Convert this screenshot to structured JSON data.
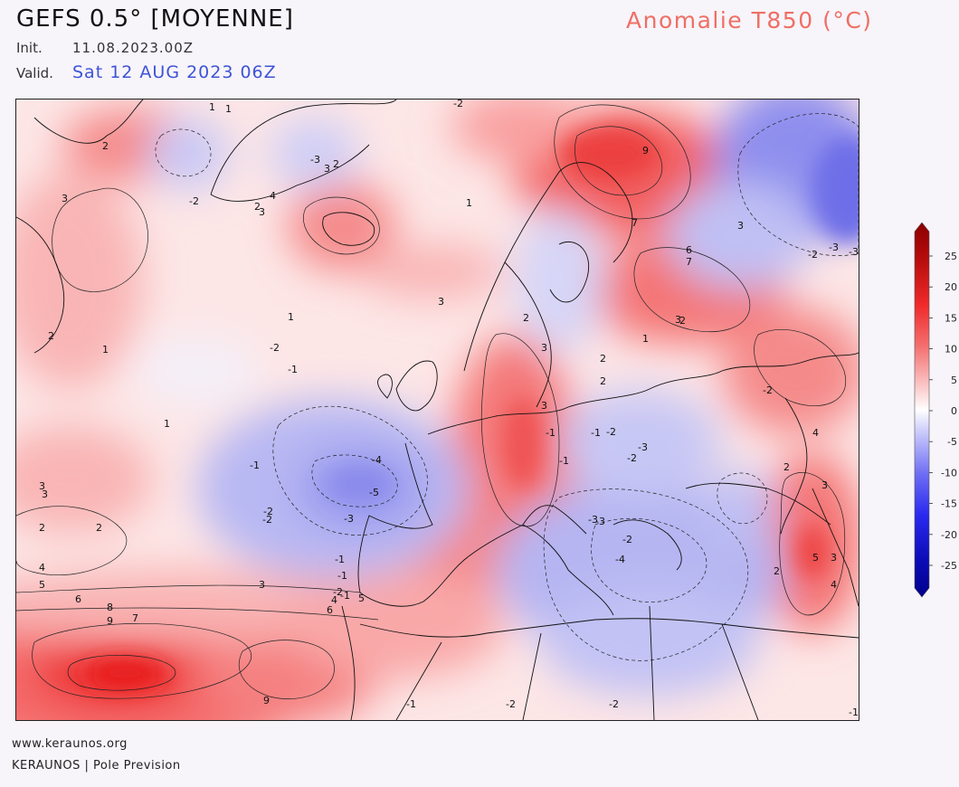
{
  "header": {
    "model": "GEFS 0.5° [MOYENNE]",
    "init_label": "Init.",
    "init_value": "11.08.2023.00Z",
    "valid_label": "Valid.",
    "valid_value": "Sat 12 AUG 2023 06Z",
    "variable": "Anomalie T850 (°C)"
  },
  "colorbar": {
    "ticks": [
      "25",
      "20",
      "15",
      "10",
      "5",
      "0",
      "-5",
      "-10",
      "-15",
      "-20",
      "-25"
    ],
    "colors": [
      "#8b0000",
      "#d11414",
      "#f04b4b",
      "#f79a9a",
      "#fbd3d3",
      "#ffffff",
      "#d3d3fb",
      "#9a9af7",
      "#4b4bf0",
      "#1414d1",
      "#00008b"
    ]
  },
  "contour_labels": [
    "-2",
    "1",
    "-3",
    "2",
    "3",
    "2",
    "4",
    "3",
    "2",
    "1",
    "-2",
    "1",
    "3",
    "2",
    "1",
    "1",
    "2",
    "3",
    "9",
    "7",
    "6",
    "7",
    "3",
    "3",
    "2",
    "-3",
    "-2",
    "-3",
    "2",
    "2",
    "1",
    "3",
    "-2",
    "-1",
    "-4",
    "-5",
    "-1",
    "-3",
    "-2",
    "-3",
    "-4",
    "-3",
    "3",
    "-1",
    "2",
    "3",
    "-3",
    "2",
    "3",
    "4",
    "-1",
    "-2",
    "-1",
    "3",
    "4",
    "5",
    "6",
    "7",
    "8",
    "9",
    "9",
    "-1",
    "-2",
    "-2",
    "-1",
    "-2",
    "3",
    "2",
    "1",
    "4",
    "5",
    "6",
    "2",
    "3",
    "4",
    "5",
    "-2",
    "-1",
    "-2",
    "-1",
    "-2",
    "-1",
    "-2"
  ],
  "footer": {
    "site": "www.keraunos.org",
    "credit": "KERAUNOS | Pole Prevision"
  }
}
